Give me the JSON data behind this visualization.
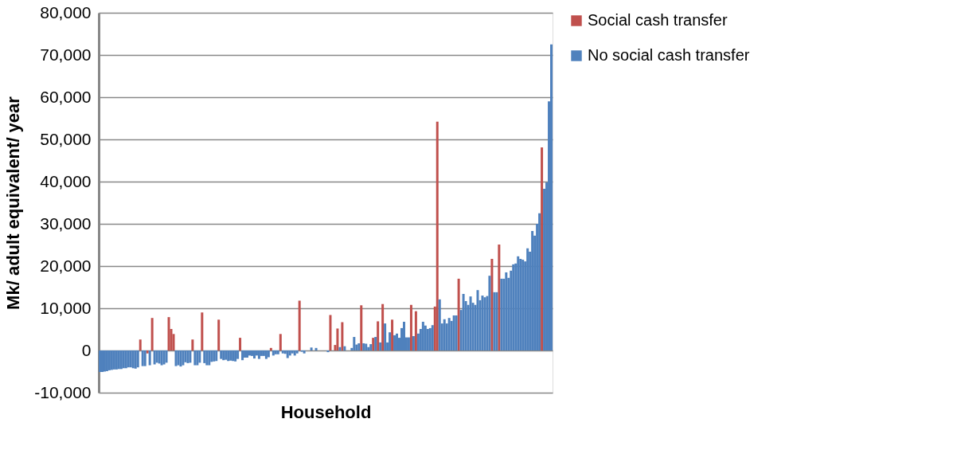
{
  "chart_data": {
    "type": "bar",
    "xlabel": "Household",
    "ylabel": "Mk/ adult equivalent/ year",
    "ylim": [
      -10000,
      80000
    ],
    "yticks": [
      {
        "value": -10000,
        "label": "-10,000"
      },
      0,
      {
        "value": 10000,
        "label": "10,000"
      },
      {
        "value": 20000,
        "label": "20,000"
      },
      {
        "value": 30000,
        "label": "30,000"
      },
      {
        "value": 40000,
        "label": "40,000"
      },
      {
        "value": 50000,
        "label": "50,000"
      },
      {
        "value": 60000,
        "label": "60,000"
      },
      {
        "value": 70000,
        "label": "70,000"
      },
      {
        "value": 80000,
        "label": "80,000"
      }
    ],
    "grid": "y",
    "legend": "right",
    "categories": [
      null,
      null,
      null,
      null,
      null,
      null,
      null,
      null,
      null,
      null,
      null,
      null,
      null,
      null,
      null,
      null,
      null,
      null,
      null,
      null,
      null,
      null,
      null,
      null,
      null,
      null,
      null,
      null,
      null,
      null,
      null,
      null,
      null,
      null,
      null,
      null,
      null,
      null,
      null,
      null,
      null,
      null,
      null,
      null,
      null,
      null,
      null,
      null,
      null,
      null,
      null,
      null,
      null,
      null,
      null,
      null,
      null,
      null,
      null,
      null,
      null,
      null,
      null,
      null,
      null,
      null,
      null,
      null,
      null,
      null,
      null,
      null,
      null,
      null,
      null,
      null,
      null,
      null,
      null,
      null,
      null,
      null,
      null,
      null,
      null,
      null,
      null,
      null,
      null,
      null,
      null,
      null,
      null,
      null,
      null,
      null,
      null,
      null,
      null,
      null,
      null,
      null,
      null,
      null,
      null,
      null,
      null,
      null,
      null,
      null,
      null,
      null,
      null,
      null,
      null,
      null,
      null,
      null,
      null,
      null,
      null,
      null,
      null,
      null,
      null,
      null,
      null,
      null,
      null,
      null,
      null,
      null,
      null,
      null,
      null,
      null,
      null,
      null,
      null,
      null,
      null,
      null,
      null,
      null,
      null,
      null,
      null,
      null,
      null,
      null,
      null,
      null,
      null,
      null,
      null,
      null,
      null,
      null,
      null,
      null,
      null,
      null,
      null,
      null,
      null,
      null,
      null,
      null,
      null,
      null,
      null,
      null,
      null,
      null,
      null,
      null,
      null,
      null,
      null,
      null,
      null,
      null,
      null,
      null,
      null,
      null,
      null,
      null,
      null,
      null,
      null
    ],
    "series": [
      {
        "name": "Social cash transfer",
        "color": "#c0504d",
        "values": [
          null,
          null,
          null,
          null,
          null,
          null,
          null,
          null,
          null,
          null,
          null,
          null,
          null,
          null,
          null,
          null,
          null,
          2600,
          null,
          null,
          -700,
          null,
          7700,
          null,
          null,
          null,
          null,
          null,
          null,
          7900,
          5100,
          3900,
          null,
          null,
          null,
          null,
          null,
          null,
          null,
          2600,
          null,
          null,
          null,
          9000,
          null,
          null,
          null,
          null,
          null,
          null,
          7300,
          null,
          null,
          null,
          null,
          null,
          null,
          null,
          null,
          3000,
          null,
          null,
          null,
          null,
          null,
          null,
          null,
          null,
          null,
          null,
          null,
          null,
          600,
          null,
          null,
          null,
          3900,
          null,
          null,
          null,
          null,
          null,
          null,
          null,
          11800,
          null,
          null,
          null,
          null,
          null,
          null,
          null,
          null,
          null,
          null,
          null,
          null,
          8400,
          null,
          1300,
          5200,
          null,
          6700,
          null,
          null,
          null,
          null,
          null,
          null,
          null,
          10700,
          null,
          null,
          null,
          null,
          3000,
          null,
          6900,
          null,
          11000,
          null,
          null,
          null,
          7300,
          null,
          null,
          null,
          null,
          null,
          null,
          null,
          10800,
          null,
          9300,
          null,
          null,
          null,
          null,
          null,
          null,
          null,
          10400,
          54200,
          null,
          null,
          null,
          null,
          null,
          null,
          null,
          null,
          17000,
          null,
          null,
          null,
          null,
          null,
          null,
          null,
          null,
          null,
          null,
          null,
          null,
          null,
          21700,
          null,
          null,
          25100,
          null,
          null,
          null,
          null,
          null,
          null,
          null,
          null,
          null,
          null,
          null,
          null,
          null,
          null,
          null,
          null,
          null,
          48100,
          null,
          null,
          null,
          null
        ]
      },
      {
        "name": "No social cash transfer",
        "color": "#4f81bd",
        "values": [
          -5100,
          -5100,
          -5000,
          -4900,
          -4700,
          -4600,
          -4500,
          -4500,
          -4400,
          -4400,
          -4200,
          -4200,
          -4000,
          -4000,
          -4200,
          -4300,
          -4000,
          null,
          -3700,
          -3700,
          null,
          -3500,
          null,
          -3300,
          -2900,
          -3100,
          -3500,
          -3300,
          -2900,
          null,
          null,
          null,
          -3700,
          -3500,
          -3800,
          -3500,
          -2800,
          -3000,
          -2900,
          null,
          -3500,
          -3500,
          -2900,
          null,
          -3000,
          -3500,
          -3500,
          -2700,
          -2600,
          -2500,
          null,
          -2000,
          -2300,
          -2200,
          -2500,
          -2400,
          -2500,
          -2600,
          -2000,
          null,
          -2300,
          -1700,
          -1700,
          -1200,
          -1300,
          -1900,
          -1200,
          -2000,
          -1300,
          -1300,
          -2000,
          -1600,
          null,
          -1200,
          -900,
          -900,
          null,
          -700,
          -800,
          -1800,
          -1200,
          -700,
          -1200,
          -700,
          null,
          -300,
          -700,
          null,
          null,
          700,
          null,
          600,
          null,
          null,
          null,
          null,
          -400,
          null,
          null,
          null,
          null,
          800,
          null,
          1000,
          null,
          null,
          600,
          3200,
          1400,
          1700,
          null,
          1700,
          1600,
          800,
          1500,
          null,
          3200,
          null,
          1900,
          null,
          6400,
          1900,
          4300,
          null,
          3600,
          4000,
          3000,
          5300,
          6800,
          3100,
          3100,
          null,
          3400,
          null,
          4000,
          5100,
          6800,
          5900,
          5100,
          5300,
          6000,
          null,
          null,
          12100,
          6400,
          7400,
          6400,
          7700,
          7000,
          8300,
          8300,
          null,
          9600,
          13400,
          11700,
          10800,
          12800,
          11300,
          10800,
          14300,
          11900,
          13000,
          12600,
          12900,
          17700,
          null,
          13800,
          13800,
          null,
          17000,
          17000,
          18500,
          17200,
          18900,
          20400,
          20600,
          22300,
          21700,
          21500,
          21100,
          24200,
          23400,
          28300,
          27200,
          30000,
          32500,
          null,
          38300,
          39800,
          59000,
          72500
        ]
      }
    ]
  }
}
